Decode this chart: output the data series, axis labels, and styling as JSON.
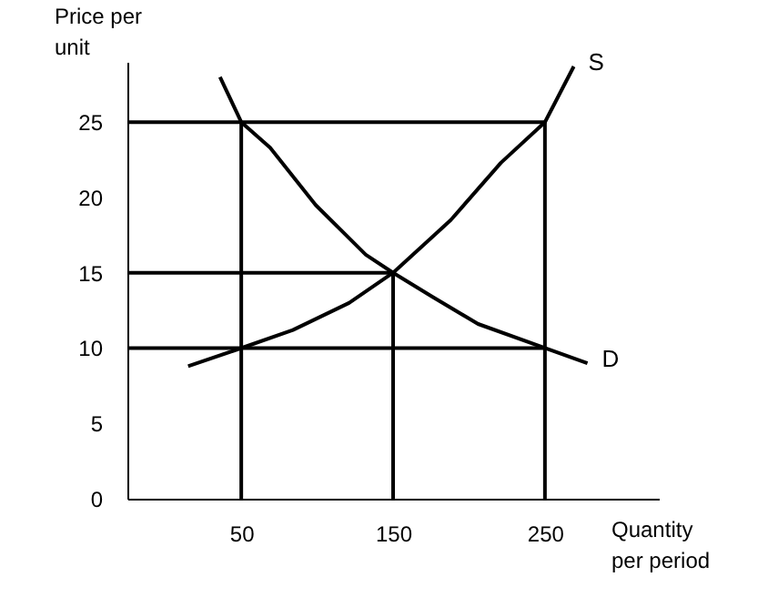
{
  "chart_data": {
    "type": "line",
    "xlabel": "Quantity\nper period",
    "ylabel": "Price per\nunit",
    "xlim": [
      -25,
      325
    ],
    "ylim": [
      0,
      29
    ],
    "xticks": [
      50,
      150,
      250
    ],
    "yticks": [
      0,
      5,
      10,
      15,
      20,
      25
    ],
    "marker": "none",
    "line_style": "solid",
    "series": [
      {
        "name": "S",
        "color": "#000000",
        "x": [
          15,
          50,
          84,
          121,
          150,
          188,
          221,
          250,
          269
        ],
        "values": [
          8.8,
          10,
          11.2,
          13,
          15,
          18.5,
          22.3,
          25,
          28.7
        ]
      },
      {
        "name": "D",
        "color": "#000000",
        "x": [
          36,
          50,
          69,
          99,
          132,
          150,
          176,
          206,
          250,
          278
        ],
        "values": [
          28,
          25,
          23.3,
          19.5,
          16.2,
          15,
          13.4,
          11.6,
          10,
          9
        ]
      },
      {
        "color": "#000000",
        "x": [
          -25,
          250
        ],
        "values": [
          25,
          25
        ]
      },
      {
        "color": "#000000",
        "x": [
          -25,
          150
        ],
        "values": [
          15,
          15
        ]
      },
      {
        "color": "#000000",
        "x": [
          -25,
          250
        ],
        "values": [
          10,
          10
        ]
      },
      {
        "color": "#000000",
        "x": [
          50,
          50
        ],
        "values": [
          0,
          25
        ]
      },
      {
        "color": "#000000",
        "x": [
          150,
          150
        ],
        "values": [
          0,
          15
        ]
      },
      {
        "color": "#000000",
        "x": [
          250,
          250
        ],
        "values": [
          0,
          25
        ]
      }
    ]
  }
}
